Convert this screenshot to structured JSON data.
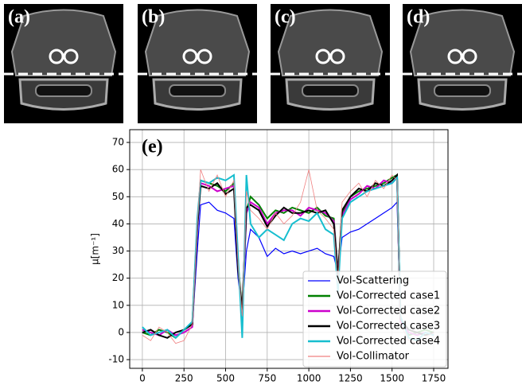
{
  "panels": [
    "(a)",
    "(b)",
    "(c)",
    "(d)"
  ],
  "chart_data": {
    "type": "line",
    "annotation": "(e)",
    "ylabel": "μ[m⁻¹]",
    "x": [
      0,
      50,
      100,
      150,
      200,
      250,
      300,
      330,
      350,
      400,
      450,
      500,
      550,
      575,
      600,
      625,
      650,
      700,
      750,
      800,
      850,
      900,
      950,
      1000,
      1050,
      1100,
      1150,
      1175,
      1200,
      1250,
      1300,
      1350,
      1400,
      1450,
      1500,
      1530,
      1550,
      1600,
      1650,
      1700,
      1750
    ],
    "series": [
      {
        "name": "Vol-Scattering",
        "color": "#0000ff",
        "values": [
          0,
          -1,
          0,
          1,
          -1,
          0,
          2,
          30,
          47,
          48,
          45,
          44,
          42,
          20,
          8,
          30,
          38,
          35,
          28,
          31,
          29,
          30,
          29,
          30,
          31,
          29,
          28,
          22,
          35,
          37,
          38,
          40,
          42,
          44,
          46,
          48,
          5,
          0,
          -1,
          0,
          -1
        ]
      },
      {
        "name": "Vol-Corrected case1",
        "color": "#008000",
        "values": [
          0,
          -1,
          1,
          0,
          -2,
          1,
          3,
          40,
          56,
          55,
          54,
          52,
          55,
          25,
          8,
          45,
          50,
          47,
          42,
          45,
          44,
          46,
          45,
          44,
          46,
          43,
          42,
          22,
          44,
          50,
          52,
          53,
          54,
          55,
          57,
          58,
          5,
          -1,
          0,
          1,
          0
        ]
      },
      {
        "name": "Vol-Corrected case2",
        "color": "#cc00cc",
        "values": [
          1,
          0,
          -1,
          1,
          -1,
          0,
          2,
          38,
          55,
          54,
          52,
          53,
          54,
          24,
          7,
          44,
          48,
          46,
          40,
          44,
          45,
          45,
          43,
          46,
          45,
          44,
          41,
          21,
          43,
          49,
          51,
          54,
          53,
          56,
          55,
          57,
          4,
          0,
          -1,
          0,
          -1
        ]
      },
      {
        "name": "Vol-Corrected case3",
        "color": "#000000",
        "values": [
          0,
          1,
          -1,
          -2,
          0,
          1,
          3,
          39,
          54,
          53,
          55,
          51,
          53,
          23,
          8,
          46,
          47,
          45,
          39,
          43,
          46,
          44,
          44,
          45,
          44,
          45,
          40,
          20,
          45,
          50,
          53,
          52,
          55,
          54,
          56,
          58,
          5,
          1,
          0,
          -1,
          0
        ]
      },
      {
        "name": "Vol-Corrected case4",
        "color": "#17becf",
        "values": [
          2,
          -1,
          0,
          1,
          -2,
          1,
          4,
          42,
          56,
          55,
          57,
          56,
          58,
          28,
          -2,
          58,
          40,
          35,
          38,
          36,
          34,
          40,
          42,
          41,
          44,
          38,
          36,
          15,
          42,
          48,
          50,
          52,
          53,
          54,
          55,
          57,
          6,
          -2,
          -3,
          0,
          -1
        ]
      },
      {
        "name": "Vol-Collimator",
        "color": "#f08080",
        "values": [
          -1,
          -3,
          2,
          0,
          -4,
          -3,
          3,
          40,
          60,
          52,
          58,
          50,
          56,
          25,
          6,
          52,
          45,
          42,
          38,
          44,
          40,
          43,
          48,
          60,
          45,
          42,
          38,
          18,
          48,
          52,
          55,
          50,
          56,
          53,
          58,
          56,
          3,
          -3,
          -4,
          -2,
          0
        ]
      }
    ],
    "xlim": [
      -76,
      1836
    ],
    "ylim": [
      -13.2,
      74.7
    ],
    "xticks": [
      0,
      250,
      500,
      750,
      1000,
      1250,
      1500,
      1750
    ],
    "yticks": [
      -10,
      0,
      10,
      20,
      30,
      40,
      50,
      60,
      70
    ],
    "grid": true,
    "legend": "lower right"
  }
}
